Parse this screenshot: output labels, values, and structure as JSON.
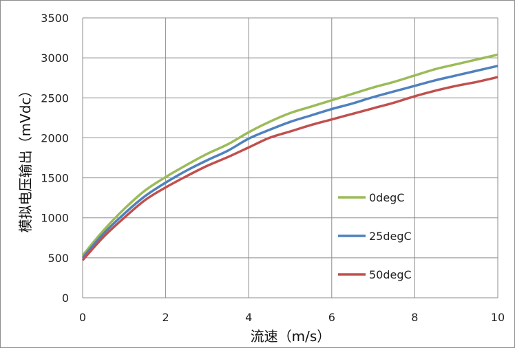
{
  "chart_data": {
    "type": "line",
    "title": "",
    "xlabel": "流速（m/s）",
    "ylabel": "模拟电压输出（mVdc）",
    "xlim": [
      0,
      10
    ],
    "ylim": [
      0,
      3500
    ],
    "xticks": [
      0,
      2,
      4,
      6,
      8,
      10
    ],
    "yticks": [
      0,
      500,
      1000,
      1500,
      2000,
      2500,
      3000,
      3500
    ],
    "grid": true,
    "legend_position": "right",
    "x": [
      0,
      0.5,
      1,
      1.5,
      2,
      2.5,
      3,
      3.5,
      4,
      4.5,
      5,
      5.5,
      6,
      6.5,
      7,
      7.5,
      8,
      8.5,
      9,
      9.5,
      10
    ],
    "series": [
      {
        "name": "0degC",
        "color": "#9BBB59",
        "values": [
          530,
          840,
          1110,
          1340,
          1510,
          1660,
          1800,
          1920,
          2070,
          2200,
          2310,
          2390,
          2470,
          2550,
          2630,
          2700,
          2780,
          2860,
          2920,
          2980,
          3040
        ]
      },
      {
        "name": "25degC",
        "color": "#4F81BD",
        "values": [
          500,
          800,
          1050,
          1270,
          1440,
          1590,
          1720,
          1840,
          1990,
          2100,
          2200,
          2280,
          2360,
          2430,
          2510,
          2580,
          2650,
          2720,
          2780,
          2840,
          2900
        ]
      },
      {
        "name": "50degC",
        "color": "#C0504D",
        "values": [
          470,
          760,
          1000,
          1220,
          1380,
          1520,
          1650,
          1760,
          1880,
          2000,
          2080,
          2160,
          2230,
          2300,
          2370,
          2440,
          2520,
          2590,
          2650,
          2700,
          2760
        ]
      }
    ]
  }
}
